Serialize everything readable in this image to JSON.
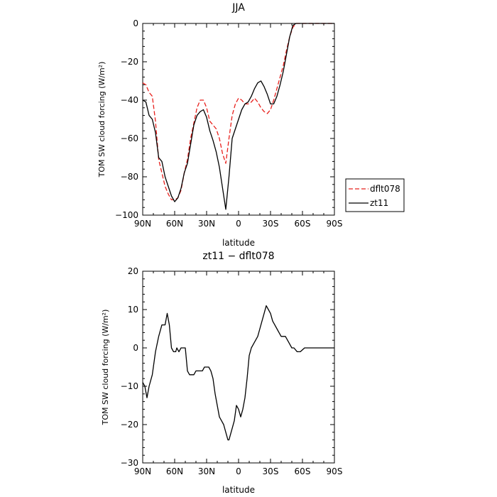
{
  "chart_data": [
    {
      "type": "line",
      "title": "JJA",
      "xlabel": "latitude",
      "ylabel": "TOM SW cloud forcing (W/m²)",
      "xlim": [
        -90,
        90
      ],
      "ylim": [
        -100,
        0
      ],
      "xticks": [
        90,
        60,
        30,
        0,
        -30,
        -60,
        -90
      ],
      "xtick_labels": [
        "90N",
        "60N",
        "30N",
        "0",
        "30S",
        "60S",
        "90S"
      ],
      "yticks": [
        0,
        -20,
        -40,
        -60,
        -80,
        -100
      ],
      "ytick_labels": [
        "0",
        "−20",
        "−40",
        "−60",
        "−80",
        "−100"
      ],
      "legend_position": "right",
      "series": [
        {
          "name": "dflt078",
          "color": "#e8201c",
          "dashed": true,
          "x": [
            90,
            87,
            84,
            81,
            78,
            75,
            72,
            69,
            66,
            63,
            60,
            57,
            54,
            51,
            48,
            45,
            42,
            39,
            36,
            33,
            30,
            27,
            24,
            21,
            18,
            15,
            12,
            9,
            6,
            3,
            0,
            -3,
            -6,
            -9,
            -12,
            -15,
            -18,
            -21,
            -24,
            -27,
            -30,
            -33,
            -36,
            -39,
            -42,
            -45,
            -48,
            -51,
            -54,
            -57,
            -60,
            -62,
            -64,
            -66,
            -70,
            -75,
            -80,
            -85,
            -90
          ],
          "y": [
            -31,
            -32,
            -36,
            -38,
            -51,
            -71,
            -78,
            -85,
            -89,
            -92,
            -92,
            -91,
            -87,
            -78,
            -71,
            -60,
            -52,
            -44,
            -40,
            -40,
            -44,
            -51,
            -53,
            -55,
            -60,
            -68,
            -73,
            -60,
            -48,
            -42,
            -39,
            -40,
            -42,
            -42,
            -41,
            -39,
            -41,
            -44,
            -46,
            -47,
            -45,
            -40,
            -34,
            -28,
            -22,
            -14,
            -7,
            -2,
            0,
            0,
            0,
            0,
            0,
            0,
            0,
            0,
            0,
            0,
            0
          ]
        },
        {
          "name": "zt11",
          "color": "#000000",
          "dashed": false,
          "x": [
            90,
            87,
            84,
            81,
            78,
            75,
            72,
            69,
            66,
            63,
            60,
            57,
            54,
            51,
            48,
            45,
            42,
            39,
            36,
            33,
            30,
            27,
            24,
            21,
            18,
            15,
            12,
            9,
            6,
            3,
            0,
            -3,
            -6,
            -9,
            -12,
            -15,
            -18,
            -21,
            -24,
            -27,
            -30,
            -33,
            -36,
            -39,
            -42,
            -45,
            -48,
            -51,
            -54,
            -57,
            -60,
            -62,
            -64,
            -66,
            -70,
            -75,
            -80,
            -85,
            -90
          ],
          "y": [
            -40,
            -41,
            -48,
            -50,
            -57,
            -70,
            -72,
            -80,
            -85,
            -90,
            -93,
            -91,
            -86,
            -78,
            -73,
            -63,
            -53,
            -48,
            -46,
            -45,
            -49,
            -56,
            -61,
            -67,
            -75,
            -86,
            -97,
            -80,
            -60,
            -55,
            -50,
            -45,
            -42,
            -41,
            -38,
            -34,
            -31,
            -30,
            -33,
            -37,
            -42,
            -42,
            -38,
            -32,
            -25,
            -16,
            -7,
            -1,
            0,
            0,
            0,
            0,
            0,
            0,
            0,
            0,
            0,
            0,
            0
          ]
        }
      ]
    },
    {
      "type": "line",
      "title": "zt11 − dflt078",
      "xlabel": "latitude",
      "ylabel": "TOM SW cloud forcing (W/m²)",
      "xlim": [
        -90,
        90
      ],
      "ylim": [
        -30,
        20
      ],
      "xticks": [
        90,
        60,
        30,
        0,
        -30,
        -60,
        -90
      ],
      "xtick_labels": [
        "90N",
        "60N",
        "30N",
        "0",
        "30S",
        "60S",
        "90S"
      ],
      "yticks": [
        20,
        10,
        0,
        -10,
        -20,
        -30
      ],
      "ytick_labels": [
        "20",
        "10",
        "0",
        "−10",
        "−20",
        "−30"
      ],
      "series": [
        {
          "name": "",
          "color": "#000000",
          "dashed": false,
          "x": [
            90,
            88,
            86,
            84,
            81,
            78,
            75,
            72,
            69,
            67,
            65,
            63,
            61,
            59,
            58,
            56,
            54,
            52,
            50,
            48,
            46,
            44,
            42,
            40,
            38,
            36,
            34,
            32,
            30,
            28,
            26,
            24,
            22,
            20,
            18,
            16,
            14,
            12,
            10,
            9,
            8,
            6,
            4,
            2,
            0,
            -2,
            -4,
            -6,
            -8,
            -10,
            -12,
            -14,
            -16,
            -18,
            -20,
            -22,
            -24,
            -26,
            -28,
            -30,
            -32,
            -34,
            -36,
            -38,
            -40,
            -42,
            -44,
            -46,
            -48,
            -50,
            -52,
            -55,
            -58,
            -62,
            -66,
            -70,
            -80,
            -90
          ],
          "y": [
            -9,
            -10,
            -13,
            -10,
            -7,
            -1,
            3,
            6,
            6,
            9,
            6,
            0,
            -1,
            -1,
            0,
            -1,
            0,
            0,
            0,
            -6,
            -7,
            -7,
            -7,
            -6,
            -6,
            -6,
            -6,
            -5,
            -5,
            -5,
            -6,
            -8,
            -12,
            -15,
            -18,
            -19,
            -20,
            -22,
            -24,
            -24,
            -23,
            -21,
            -19,
            -15,
            -16,
            -18,
            -16,
            -13,
            -8,
            -2,
            0,
            1,
            2,
            3,
            5,
            7,
            9,
            11,
            10,
            9,
            7,
            6,
            5,
            4,
            3,
            3,
            3,
            2,
            1,
            0,
            0,
            -1,
            -1,
            0,
            0,
            0,
            0,
            0
          ]
        }
      ]
    }
  ]
}
